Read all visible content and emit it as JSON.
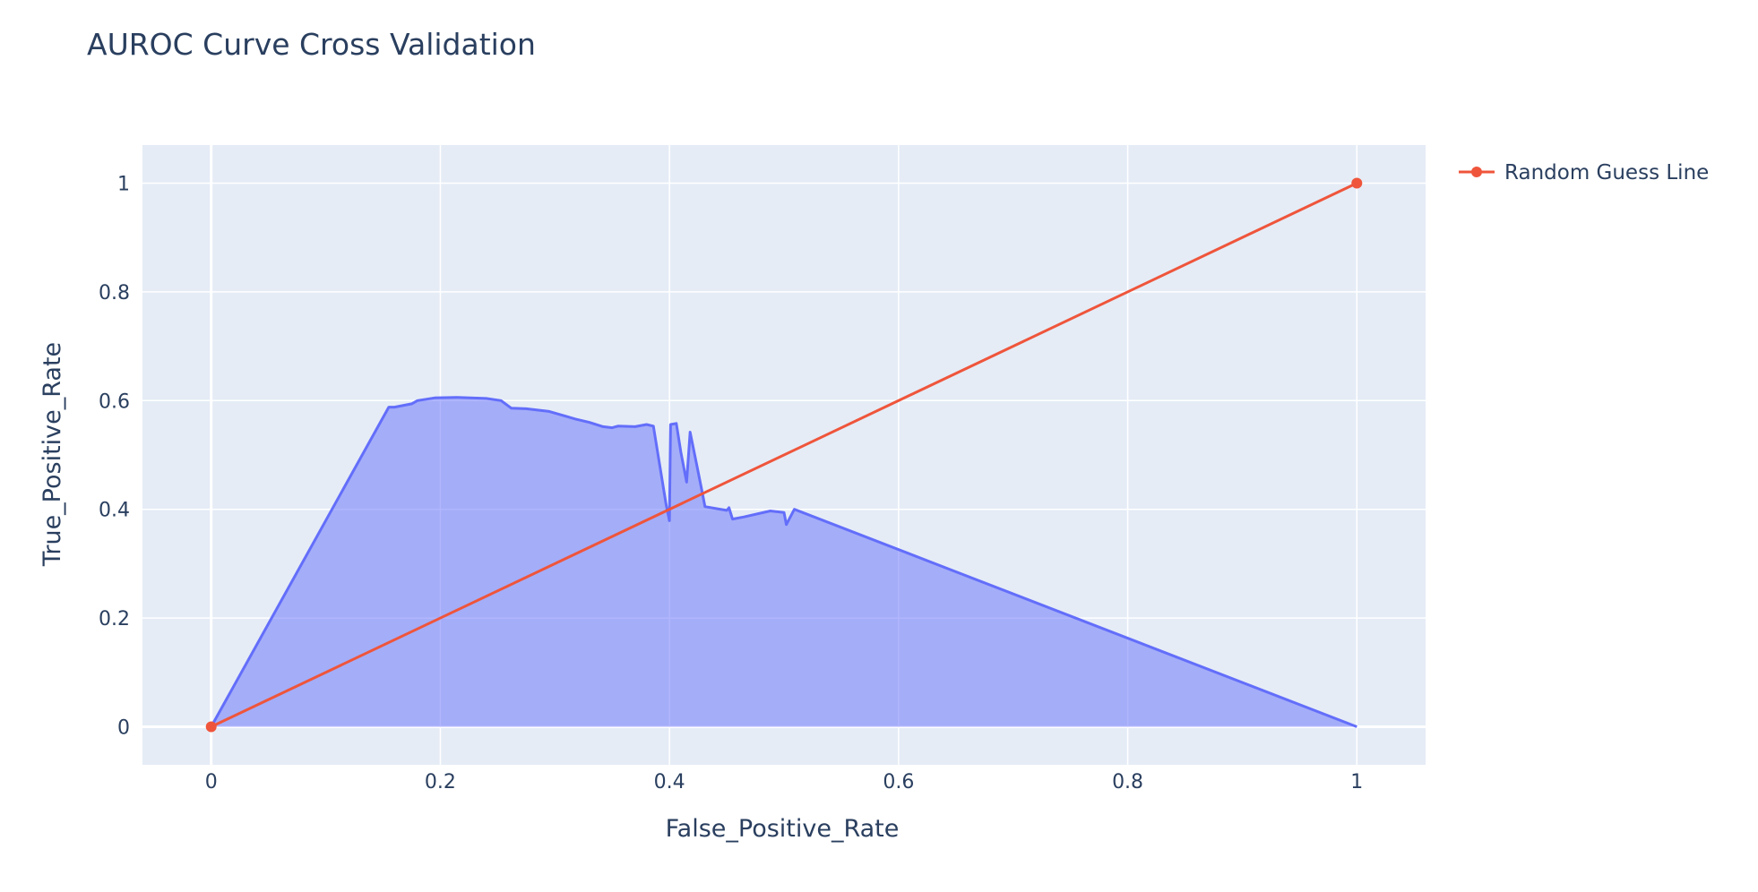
{
  "chart_data": {
    "type": "area",
    "title": "AUROC Curve Cross Validation",
    "xlabel": "False_Positive_Rate",
    "ylabel": "True_Positive_Rate",
    "xlim": [
      -0.06,
      1.06
    ],
    "ylim": [
      -0.07,
      1.07
    ],
    "x_ticks": [
      0,
      0.2,
      0.4,
      0.6,
      0.8,
      1
    ],
    "x_tick_labels": [
      "0",
      "0.2",
      "0.4",
      "0.6",
      "0.8",
      "1"
    ],
    "y_ticks": [
      0,
      0.2,
      0.4,
      0.6,
      0.8,
      1
    ],
    "y_tick_labels": [
      "0",
      "0.2",
      "0.4",
      "0.6",
      "0.8",
      "1"
    ],
    "grid": true,
    "legend_position": "top-right",
    "background_color": "#E5ECF6",
    "series": [
      {
        "name": "",
        "mode": "lines",
        "fill": "tozeroy",
        "color": "#636EFA",
        "x": [
          0,
          0.155,
          0.16,
          0.175,
          0.18,
          0.195,
          0.215,
          0.24,
          0.253,
          0.262,
          0.275,
          0.295,
          0.318,
          0.33,
          0.342,
          0.35,
          0.355,
          0.37,
          0.38,
          0.386,
          0.397,
          0.4,
          0.401,
          0.406,
          0.41,
          0.415,
          0.418,
          0.424,
          0.428,
          0.431,
          0.45,
          0.452,
          0.455,
          0.465,
          0.488,
          0.5,
          0.502,
          0.509,
          1
        ],
        "y": [
          0,
          0.588,
          0.588,
          0.594,
          0.6,
          0.605,
          0.606,
          0.604,
          0.6,
          0.586,
          0.585,
          0.58,
          0.566,
          0.56,
          0.552,
          0.55,
          0.553,
          0.552,
          0.556,
          0.553,
          0.41,
          0.379,
          0.556,
          0.558,
          0.505,
          0.45,
          0.542,
          0.48,
          0.438,
          0.405,
          0.398,
          0.403,
          0.382,
          0.386,
          0.397,
          0.394,
          0.372,
          0.4,
          0
        ]
      },
      {
        "name": "Random Guess Line",
        "mode": "lines+markers",
        "color": "#EF553B",
        "x": [
          0,
          1
        ],
        "y": [
          0,
          1
        ]
      }
    ]
  }
}
